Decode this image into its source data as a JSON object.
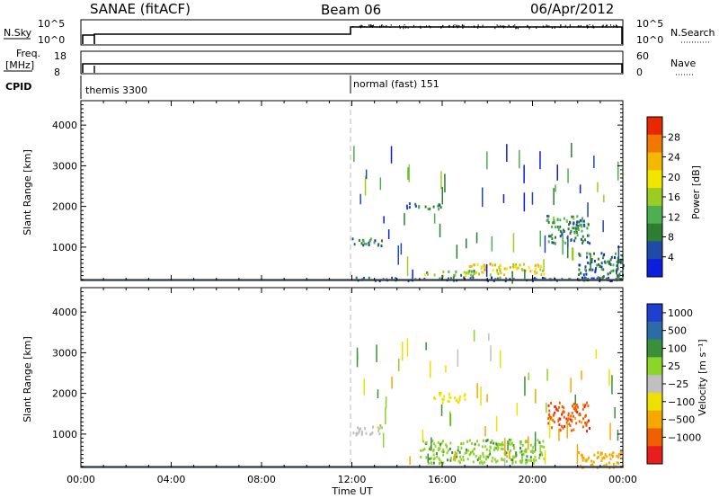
{
  "header": {
    "radar": "SANAE (fitACF)",
    "beam": "Beam 06",
    "date": "06/Apr/2012"
  },
  "nsky_panel": {
    "left_label": "N.Sky",
    "left_ticks": [
      "10^5",
      "10^0"
    ],
    "right_label": "N.Search",
    "right_ticks": [
      "10^5",
      "10^0"
    ]
  },
  "freq_panel": {
    "left_label_1": "Freq.",
    "left_label_2": "[MHz]",
    "left_ticks": [
      "18",
      "8"
    ],
    "right_label": "Nave",
    "right_ticks": [
      "60",
      "0"
    ]
  },
  "cpid_panel": {
    "label": "CPID",
    "modes": [
      {
        "name": "themis 3300"
      },
      {
        "name": "normal (fast) 151"
      }
    ]
  },
  "colors": {
    "power": [
      "#0a1edc",
      "#1f4aa8",
      "#2e7d32",
      "#4caf50",
      "#9ccc24",
      "#f2e600",
      "#f5b800",
      "#f07800",
      "#e82800"
    ],
    "velocity": [
      "#1f3fd0",
      "#2d6aa8",
      "#3a8f3a",
      "#8cd428",
      "#c0c0c0",
      "#f0e000",
      "#f5a800",
      "#f06000",
      "#e81e1e"
    ]
  },
  "chart_data": [
    {
      "type": "heatmap",
      "xlabel": "",
      "ylabel": "Slant Range [km]",
      "xlim_hours": [
        0,
        24
      ],
      "ylim": [
        180,
        4600
      ],
      "y_ticks": [
        1000,
        2000,
        3000,
        4000
      ],
      "colorbar": {
        "label": "Power [dB]",
        "range": [
          0,
          32
        ],
        "tick_labels": [
          "4",
          "8",
          "12",
          "16",
          "20",
          "24",
          "28"
        ]
      },
      "patches": [
        {
          "t0": 12.0,
          "t1": 13.4,
          "r0": 1050,
          "r1": 1250,
          "value": 8
        },
        {
          "t0": 14.4,
          "t1": 16.0,
          "r0": 1950,
          "r1": 2100,
          "value": 8
        },
        {
          "t0": 17.0,
          "t1": 20.5,
          "r0": 350,
          "r1": 620,
          "value": 20
        },
        {
          "t0": 15.0,
          "t1": 17.5,
          "r0": 320,
          "r1": 450,
          "value": 14
        },
        {
          "t0": 20.6,
          "t1": 22.5,
          "r0": 1100,
          "r1": 1800,
          "value": 10
        },
        {
          "t0": 22.0,
          "t1": 24.0,
          "r0": 200,
          "r1": 900,
          "value": 8
        },
        {
          "t0": 12.0,
          "t1": 24.0,
          "r0": 200,
          "r1": 280,
          "value": 6
        }
      ]
    },
    {
      "type": "heatmap",
      "xlabel": "Time UT",
      "ylabel": "Slant Range [km]",
      "xlim_hours": [
        0,
        24
      ],
      "ylim": [
        180,
        4600
      ],
      "y_ticks": [
        1000,
        2000,
        3000,
        4000
      ],
      "x_tick_labels": [
        "00:00",
        "04:00",
        "08:00",
        "12:00",
        "16:00",
        "20:00",
        "00:00"
      ],
      "colorbar": {
        "label": "Velocity [m s⁻¹]",
        "tick_labels": [
          "1000",
          "500",
          "100",
          "25",
          "−25",
          "−100",
          "−500",
          "−1000"
        ]
      },
      "patches": [
        {
          "t0": 12.0,
          "t1": 13.4,
          "r0": 1000,
          "r1": 1250,
          "value": 0
        },
        {
          "t0": 15.6,
          "t1": 17.0,
          "r0": 1800,
          "r1": 2050,
          "value": -60
        },
        {
          "t0": 15.0,
          "t1": 20.5,
          "r0": 300,
          "r1": 900,
          "value": 80
        },
        {
          "t0": 20.6,
          "t1": 22.5,
          "r0": 1100,
          "r1": 1800,
          "value": -800
        },
        {
          "t0": 22.0,
          "t1": 24.0,
          "r0": 200,
          "r1": 600,
          "value": -200
        }
      ]
    }
  ]
}
